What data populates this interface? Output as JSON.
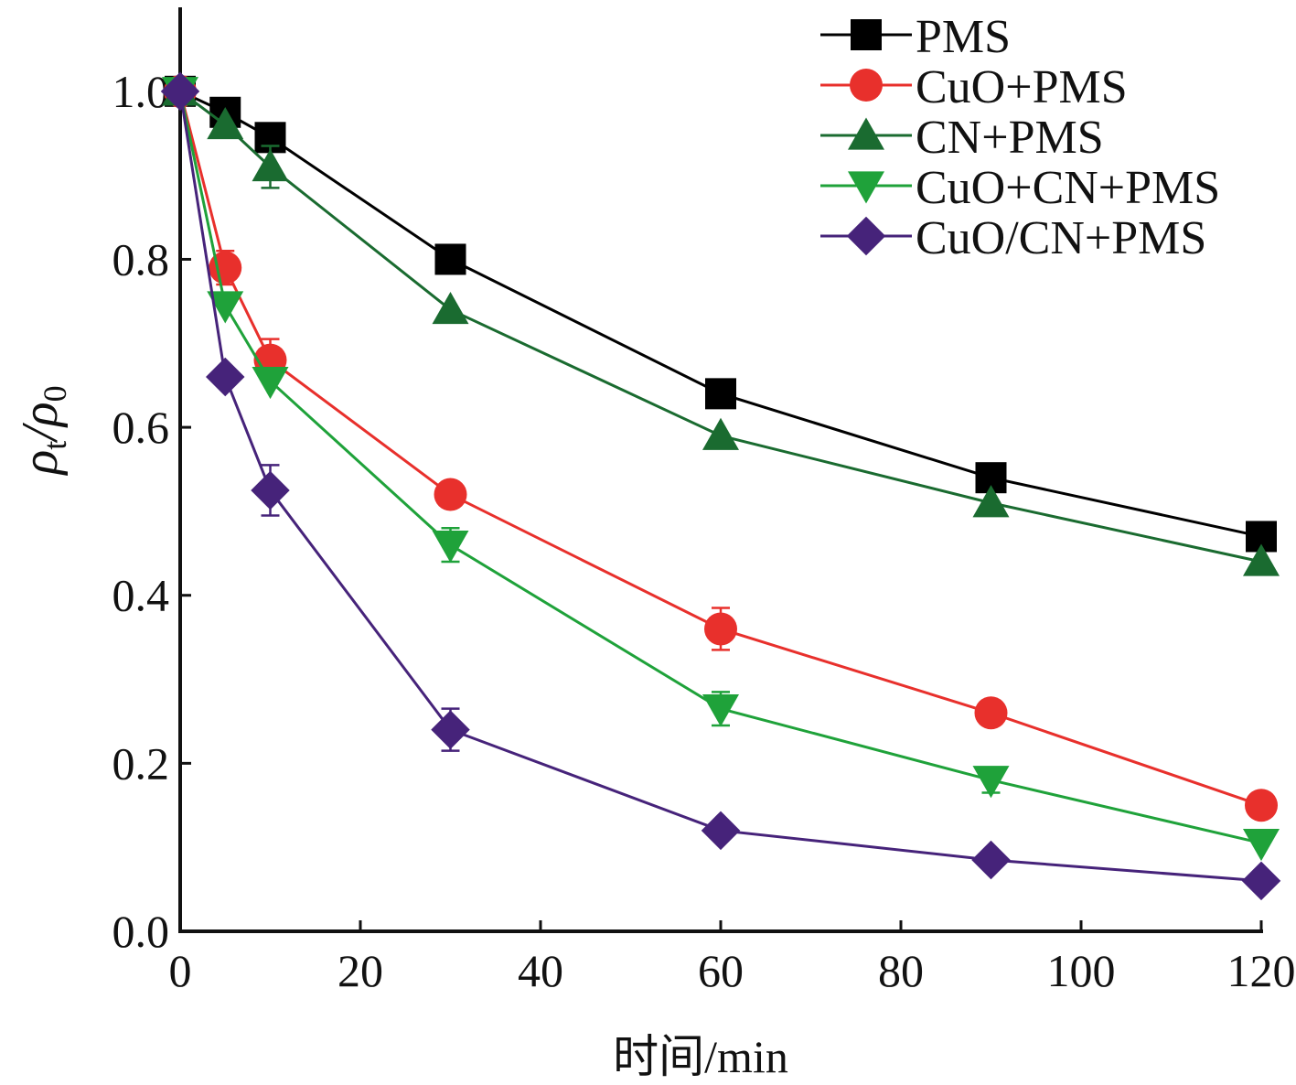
{
  "chart_data": {
    "type": "line",
    "xlabel": "时间/min",
    "ylabel": {
      "text": "ρt/ρ0",
      "symbol": "ρ",
      "sub_num": "t",
      "sub_den": "0"
    },
    "xlim": [
      0,
      120
    ],
    "ylim": [
      0,
      1.1
    ],
    "xticks": [
      0,
      20,
      40,
      60,
      80,
      100,
      120
    ],
    "xtick_labels": [
      "0",
      "20",
      "40",
      "60",
      "80",
      "100",
      "120"
    ],
    "yticks": [
      0,
      0.2,
      0.4,
      0.6,
      0.8,
      1.0
    ],
    "ytick_labels": [
      "0.0",
      "0.2",
      "0.4",
      "0.6",
      "0.8",
      "1.0"
    ],
    "grid": false,
    "legend_position": "top-right",
    "x": [
      0,
      5,
      10,
      30,
      60,
      90,
      120
    ],
    "series": [
      {
        "name": "PMS",
        "color": "#000000",
        "marker": "square",
        "values": [
          1.0,
          0.975,
          0.945,
          0.8,
          0.64,
          0.54,
          0.47
        ],
        "errors": [
          0,
          0,
          0,
          0,
          0,
          0,
          0
        ]
      },
      {
        "name": "CuO+PMS",
        "color": "#e8302c",
        "marker": "circle",
        "values": [
          1.0,
          0.79,
          0.68,
          0.52,
          0.36,
          0.26,
          0.15
        ],
        "errors": [
          0,
          0.02,
          0.025,
          0.01,
          0.025,
          0.01,
          0.005
        ]
      },
      {
        "name": "CN+PMS",
        "color": "#1a6b30",
        "marker": "triangle-up",
        "values": [
          1.0,
          0.96,
          0.91,
          0.74,
          0.59,
          0.51,
          0.44
        ],
        "errors": [
          0,
          0,
          0.025,
          0,
          0,
          0,
          0
        ]
      },
      {
        "name": "CuO+CN+PMS",
        "color": "#1fa23a",
        "marker": "triangle-down",
        "values": [
          1.0,
          0.745,
          0.655,
          0.46,
          0.265,
          0.18,
          0.105
        ],
        "errors": [
          0,
          0,
          0,
          0.02,
          0.02,
          0.015,
          0
        ]
      },
      {
        "name": "CuO/CN+PMS",
        "color": "#46237a",
        "marker": "diamond",
        "values": [
          1.0,
          0.66,
          0.525,
          0.24,
          0.12,
          0.085,
          0.06
        ],
        "errors": [
          0,
          0,
          0.03,
          0.025,
          0.01,
          0,
          0
        ]
      }
    ]
  }
}
